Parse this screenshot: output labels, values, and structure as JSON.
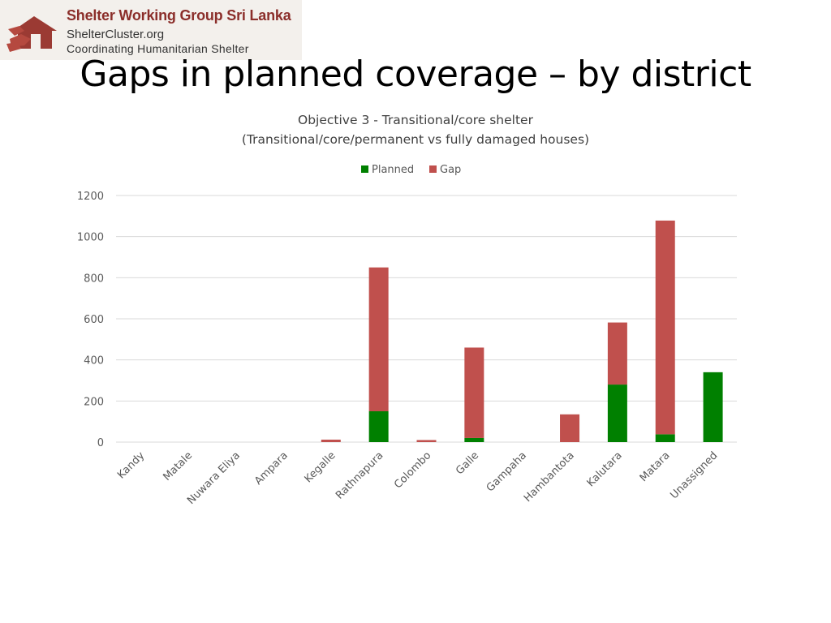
{
  "logo": {
    "org_name": "Shelter Working Group Sri Lanka",
    "website": "ShelterCluster.org",
    "tagline": "Coordinating Humanitarian Shelter"
  },
  "page_title": "Gaps in planned coverage – by district",
  "colors": {
    "planned": "#008000",
    "gap": "#c0504d",
    "grid": "#d9d9d9",
    "axis_text": "#595959"
  },
  "chart_data": {
    "type": "bar",
    "stacked": true,
    "title": "Objective 3 - Transitional/core shelter",
    "subtitle": "(Transitional/core/permanent vs fully damaged houses)",
    "categories": [
      "Kandy",
      "Matale",
      "Nuwara Eliya",
      "Ampara",
      "Kegalle",
      "Rathnapura",
      "Colombo",
      "Galle",
      "Gampaha",
      "Hambantota",
      "Kalutara",
      "Matara",
      "Unassigned"
    ],
    "series": [
      {
        "name": "Planned",
        "values": [
          0,
          0,
          0,
          0,
          0,
          150,
          0,
          20,
          0,
          0,
          280,
          38,
          340
        ]
      },
      {
        "name": "Gap",
        "values": [
          0,
          0,
          0,
          0,
          12,
          700,
          10,
          440,
          0,
          135,
          302,
          1040,
          0
        ]
      }
    ],
    "ylim": [
      0,
      1200
    ],
    "yticks": [
      0,
      200,
      400,
      600,
      800,
      1000,
      1200
    ],
    "xlabel": "",
    "ylabel": "",
    "legend": "top-center",
    "grid": true
  }
}
